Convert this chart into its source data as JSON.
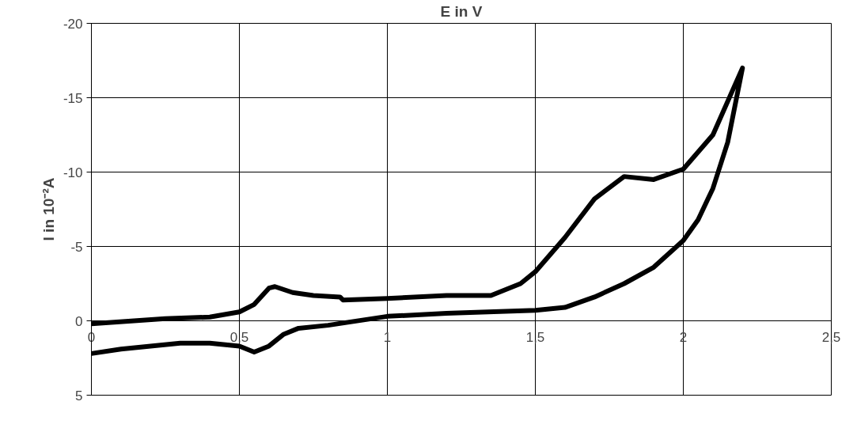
{
  "chart_data": {
    "type": "line",
    "xlabel": "E in V",
    "ylabel": "I in 10⁻²A",
    "xlim": [
      0,
      2.5
    ],
    "ylim": [
      5,
      -20
    ],
    "xticks": [
      {
        "value": 0,
        "label": "0"
      },
      {
        "value": 0.5,
        "label": "0,5"
      },
      {
        "value": 1,
        "label": "1"
      },
      {
        "value": 1.5,
        "label": "1,5"
      },
      {
        "value": 2,
        "label": "2"
      },
      {
        "value": 2.5,
        "label": "2,5"
      }
    ],
    "yticks": [
      5,
      0,
      -5,
      -10,
      -15,
      -20
    ],
    "grid": true,
    "marker": "none",
    "line_style": "solid",
    "series": [
      {
        "color": "#000000",
        "x": [
          0,
          0.25,
          0.4,
          0.5,
          0.55,
          0.6,
          0.62,
          0.68,
          0.75,
          0.84,
          0.85,
          1.0,
          1.2,
          1.35,
          1.45,
          1.5,
          1.6,
          1.7,
          1.8,
          1.9,
          2.0,
          2.1,
          2.2,
          2.15,
          2.1,
          2.05,
          2.0,
          1.9,
          1.8,
          1.7,
          1.6,
          1.5,
          1.2,
          1.0,
          0.8,
          0.7,
          0.65,
          0.6,
          0.55,
          0.5,
          0.4,
          0.3,
          0.2,
          0.1,
          0
        ],
        "values": [
          0.2,
          -0.15,
          -0.25,
          -0.6,
          -1.1,
          -2.2,
          -2.3,
          -1.9,
          -1.7,
          -1.6,
          -1.4,
          -1.5,
          -1.7,
          -1.7,
          -2.5,
          -3.3,
          -5.6,
          -8.2,
          -9.7,
          -9.5,
          -10.2,
          -12.5,
          -17,
          -12,
          -8.9,
          -6.8,
          -5.4,
          -3.6,
          -2.5,
          -1.6,
          -0.9,
          -0.7,
          -0.5,
          -0.3,
          0.3,
          0.5,
          0.9,
          1.7,
          2.1,
          1.7,
          1.5,
          1.5,
          1.7,
          1.9,
          2.2
        ]
      }
    ]
  }
}
